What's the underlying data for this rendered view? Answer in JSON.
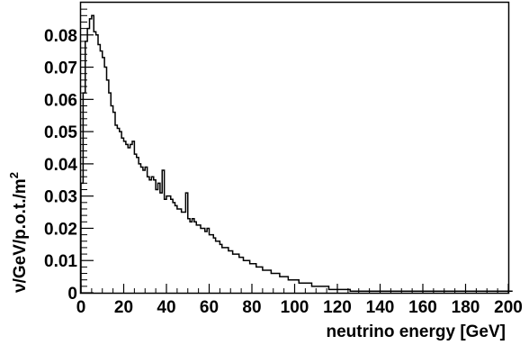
{
  "chart_data": {
    "type": "histogram",
    "title": "",
    "xlabel": "neutrino energy [GeV]",
    "ylabel": "ν/GeV/p.o.t./m",
    "ylabel_superscript": "2",
    "xlim": [
      0,
      200
    ],
    "ylim": [
      0,
      0.09
    ],
    "bin_width": 1,
    "x_ticks": [
      0,
      20,
      40,
      60,
      80,
      100,
      120,
      140,
      160,
      180,
      200
    ],
    "x_tick_labels": [
      "0",
      "20",
      "40",
      "60",
      "80",
      "100",
      "120",
      "140",
      "160",
      "180",
      "200"
    ],
    "y_ticks": [
      0,
      0.01,
      0.02,
      0.03,
      0.04,
      0.05,
      0.06,
      0.07,
      0.08
    ],
    "y_tick_labels": [
      "0",
      "0.01",
      "0.02",
      "0.03",
      "0.04",
      "0.05",
      "0.06",
      "0.07",
      "0.08"
    ],
    "grid": false,
    "legend": "none",
    "line_color": "#000000",
    "values": [
      0.034,
      0.062,
      0.078,
      0.082,
      0.085,
      0.086,
      0.081,
      0.08,
      0.077,
      0.075,
      0.073,
      0.07,
      0.066,
      0.062,
      0.058,
      0.056,
      0.052,
      0.051,
      0.05,
      0.048,
      0.047,
      0.046,
      0.045,
      0.046,
      0.047,
      0.043,
      0.042,
      0.04,
      0.039,
      0.038,
      0.039,
      0.036,
      0.035,
      0.036,
      0.035,
      0.032,
      0.034,
      0.031,
      0.038,
      0.029,
      0.03,
      0.03,
      0.029,
      0.028,
      0.027,
      0.026,
      0.026,
      0.025,
      0.025,
      0.031,
      0.023,
      0.022,
      0.023,
      0.022,
      0.021,
      0.021,
      0.02,
      0.02,
      0.019,
      0.02,
      0.018,
      0.018,
      0.017,
      0.016,
      0.016,
      0.015,
      0.014,
      0.014,
      0.014,
      0.013,
      0.013,
      0.012,
      0.012,
      0.012,
      0.011,
      0.011,
      0.01,
      0.01,
      0.01,
      0.009,
      0.009,
      0.009,
      0.008,
      0.008,
      0.008,
      0.007,
      0.007,
      0.007,
      0.007,
      0.006,
      0.006,
      0.006,
      0.006,
      0.005,
      0.005,
      0.005,
      0.005,
      0.004,
      0.004,
      0.004,
      0.004,
      0.004,
      0.003,
      0.003,
      0.003,
      0.003,
      0.003,
      0.003,
      0.002,
      0.002,
      0.002,
      0.002,
      0.002,
      0.002,
      0.002,
      0.002,
      0.001,
      0.001,
      0.001,
      0.001,
      0.001,
      0.001,
      0.001,
      0.001,
      0.001,
      0.001,
      0.0005,
      0.0005,
      0.0005,
      0.0005,
      0.0005,
      0.0005,
      0.0005,
      0.0005,
      0.0005,
      0.0005,
      0.0005,
      0.0005,
      0.0005,
      0.0005,
      0.0005,
      0.0005,
      0.0005,
      0.0005,
      0.0005,
      0.0005,
      0.0005,
      0.0005,
      0.0005,
      0.0005,
      0.0005,
      0.0005,
      0.0005,
      0.0005,
      0.0005,
      0.0005,
      0.0005,
      0.0005,
      0.0005,
      0.0005,
      0.0005,
      0.0005,
      0.0005,
      0.0005,
      0.0005,
      0.0005,
      0.0005,
      0.0005,
      0.0005,
      0.0005,
      0.0005,
      0.0005,
      0.0005,
      0.0005,
      0.0005,
      0.0005,
      0.0005,
      0.0005,
      0.0005,
      0.0005,
      0.0005,
      0.0005,
      0.0005,
      0.0005,
      0.0005,
      0.0005,
      0.0005,
      0.0005,
      0.0005,
      0.0005,
      0.0005,
      0.0005,
      0.0005,
      0.0005,
      0.0005,
      0.0005,
      0.0005,
      0.0005,
      0.0005,
      0.0005,
      0.0005,
      0.0005
    ]
  }
}
